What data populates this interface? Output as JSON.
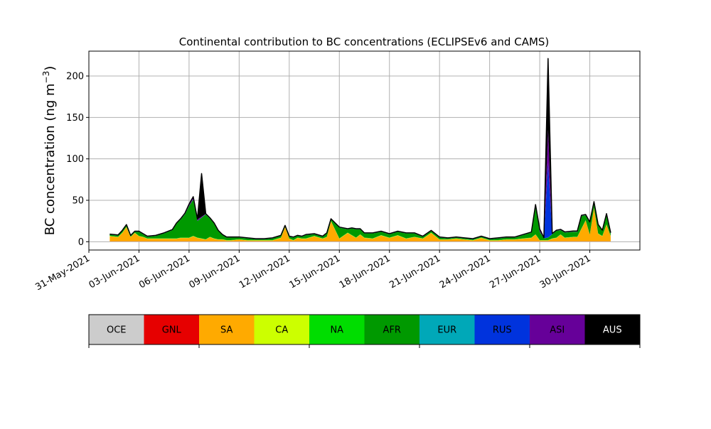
{
  "chart_data": {
    "type": "area",
    "title": "Continental contribution to BC concentrations (ECLIPSEv6 and CAMS)",
    "ylabel_text": "BC concentration (ng m",
    "ylabel_sup": "−3",
    "ylabel_close": ")",
    "xlabel": "",
    "xlim": [
      "2021-05-31",
      "2021-07-03"
    ],
    "ylim": [
      -10,
      230
    ],
    "grid": true,
    "y_ticks": [
      0,
      50,
      100,
      150,
      200
    ],
    "x_ticks": [
      {
        "date": "2021-05-31",
        "label": "31-May-2021"
      },
      {
        "date": "2021-06-03",
        "label": "03-Jun-2021"
      },
      {
        "date": "2021-06-06",
        "label": "06-Jun-2021"
      },
      {
        "date": "2021-06-09",
        "label": "09-Jun-2021"
      },
      {
        "date": "2021-06-12",
        "label": "12-Jun-2021"
      },
      {
        "date": "2021-06-15",
        "label": "15-Jun-2021"
      },
      {
        "date": "2021-06-18",
        "label": "18-Jun-2021"
      },
      {
        "date": "2021-06-21",
        "label": "21-Jun-2021"
      },
      {
        "date": "2021-06-24",
        "label": "24-Jun-2021"
      },
      {
        "date": "2021-06-27",
        "label": "27-Jun-2021"
      },
      {
        "date": "2021-06-30",
        "label": "30-Jun-2021"
      }
    ],
    "x": [
      "2021-06-01 06:00",
      "2021-06-01 18:00",
      "2021-06-02 00:00",
      "2021-06-02 06:00",
      "2021-06-02 12:00",
      "2021-06-02 18:00",
      "2021-06-03 00:00",
      "2021-06-03 06:00",
      "2021-06-03 12:00",
      "2021-06-04 00:00",
      "2021-06-04 12:00",
      "2021-06-05 00:00",
      "2021-06-05 06:00",
      "2021-06-05 12:00",
      "2021-06-05 18:00",
      "2021-06-06 00:00",
      "2021-06-06 06:00",
      "2021-06-06 12:00",
      "2021-06-06 18:00",
      "2021-06-07 00:00",
      "2021-06-07 06:00",
      "2021-06-07 12:00",
      "2021-06-07 18:00",
      "2021-06-08 00:00",
      "2021-06-08 06:00",
      "2021-06-08 12:00",
      "2021-06-09 00:00",
      "2021-06-09 12:00",
      "2021-06-10 00:00",
      "2021-06-10 12:00",
      "2021-06-11 00:00",
      "2021-06-11 12:00",
      "2021-06-11 18:00",
      "2021-06-12 00:00",
      "2021-06-12 06:00",
      "2021-06-12 12:00",
      "2021-06-12 18:00",
      "2021-06-13 00:00",
      "2021-06-13 12:00",
      "2021-06-14 00:00",
      "2021-06-14 06:00",
      "2021-06-14 12:00",
      "2021-06-15 00:00",
      "2021-06-15 12:00",
      "2021-06-15 18:00",
      "2021-06-16 00:00",
      "2021-06-16 06:00",
      "2021-06-16 12:00",
      "2021-06-17 00:00",
      "2021-06-17 12:00",
      "2021-06-18 00:00",
      "2021-06-18 12:00",
      "2021-06-19 00:00",
      "2021-06-19 12:00",
      "2021-06-20 00:00",
      "2021-06-20 12:00",
      "2021-06-21 00:00",
      "2021-06-21 12:00",
      "2021-06-22 00:00",
      "2021-06-22 12:00",
      "2021-06-23 00:00",
      "2021-06-23 12:00",
      "2021-06-24 00:00",
      "2021-06-24 12:00",
      "2021-06-25 00:00",
      "2021-06-25 12:00",
      "2021-06-26 00:00",
      "2021-06-26 12:00",
      "2021-06-26 18:00",
      "2021-06-27 00:00",
      "2021-06-27 06:00",
      "2021-06-27 12:00",
      "2021-06-27 18:00",
      "2021-06-28 00:00",
      "2021-06-28 06:00",
      "2021-06-28 12:00",
      "2021-06-29 00:00",
      "2021-06-29 06:00",
      "2021-06-29 12:00",
      "2021-06-29 18:00",
      "2021-06-30 00:00",
      "2021-06-30 06:00",
      "2021-06-30 12:00",
      "2021-06-30 18:00",
      "2021-07-01 00:00",
      "2021-07-01 06:00"
    ],
    "series": [
      {
        "name": "OCE",
        "color": "#cccccc",
        "values": [
          0.3,
          0.3,
          0.3,
          0.3,
          0.3,
          0.3,
          0.3,
          0.3,
          0.3,
          0.3,
          0.3,
          0.3,
          0.3,
          0.3,
          0.3,
          0.3,
          0.3,
          0.3,
          0.3,
          0.3,
          0.3,
          0.3,
          0.3,
          0.3,
          0.3,
          0.3,
          0.3,
          0.3,
          0.3,
          0.3,
          0.3,
          0.3,
          0.3,
          0.3,
          0.3,
          0.3,
          0.3,
          0.3,
          0.3,
          0.3,
          0.3,
          0.3,
          0.3,
          0.3,
          0.3,
          0.3,
          0.3,
          0.3,
          0.3,
          0.3,
          0.3,
          0.3,
          0.3,
          0.3,
          0.3,
          0.3,
          0.3,
          0.3,
          0.3,
          0.3,
          0.3,
          0.3,
          0.3,
          0.3,
          0.3,
          0.3,
          0.3,
          0.3,
          0.3,
          0.3,
          0.3,
          0.3,
          0.3,
          0.3,
          0.3,
          0.3,
          0.3,
          0.3,
          0.3,
          0.3,
          0.3,
          0.3,
          0.3,
          0.3,
          0.3,
          0.3
        ]
      },
      {
        "name": "GNL",
        "color": "#e60000",
        "values": [
          0.2,
          0.2,
          0.2,
          0.2,
          0.2,
          0.2,
          0.2,
          0.2,
          0.2,
          0.2,
          0.2,
          0.2,
          0.2,
          0.2,
          0.2,
          0.2,
          0.2,
          0.2,
          0.2,
          0.2,
          0.2,
          0.2,
          0.2,
          0.2,
          0.2,
          0.2,
          0.2,
          0.2,
          0.2,
          0.2,
          0.2,
          0.2,
          0.2,
          0.2,
          0.2,
          0.2,
          0.2,
          0.2,
          0.2,
          0.2,
          0.2,
          0.2,
          0.2,
          0.2,
          0.2,
          0.2,
          0.2,
          0.2,
          0.2,
          0.2,
          0.2,
          0.2,
          0.2,
          0.2,
          0.2,
          0.2,
          0.2,
          0.2,
          0.2,
          0.2,
          0.2,
          0.2,
          0.2,
          0.2,
          0.2,
          0.2,
          0.2,
          0.2,
          0.2,
          0.2,
          0.2,
          0.2,
          0.2,
          0.2,
          0.2,
          0.2,
          0.2,
          0.2,
          0.2,
          0.2,
          0.2,
          0.2,
          0.2,
          0.2,
          0.2,
          0.2
        ]
      },
      {
        "name": "SA",
        "color": "#ffaa00",
        "values": [
          6,
          5,
          10,
          17,
          5,
          10,
          6,
          5,
          3,
          3,
          3,
          3,
          3,
          4,
          4,
          4,
          6,
          4,
          3,
          2,
          5,
          3,
          2,
          2,
          1,
          1,
          2,
          1,
          1,
          1,
          1,
          4,
          17,
          3,
          1,
          4,
          3,
          3,
          6,
          3,
          5,
          24,
          3,
          10,
          7,
          4,
          8,
          4,
          3,
          7,
          4,
          7,
          3,
          5,
          3,
          10,
          2,
          2,
          3,
          2,
          1,
          4,
          1,
          1,
          2,
          2,
          3,
          4,
          8,
          1,
          1,
          1,
          3,
          4,
          8,
          4,
          5,
          5,
          15,
          25,
          8,
          40,
          9,
          6,
          20,
          6
        ]
      },
      {
        "name": "CA",
        "color": "#ccff00",
        "values": [
          0.3,
          0.3,
          0.3,
          0.3,
          0.3,
          0.3,
          0.3,
          0.3,
          0.3,
          0.3,
          0.3,
          0.3,
          0.3,
          0.3,
          0.3,
          0.3,
          0.3,
          0.3,
          0.3,
          0.3,
          0.3,
          0.3,
          0.3,
          0.3,
          0.3,
          0.3,
          0.3,
          0.3,
          0.3,
          0.3,
          0.3,
          0.3,
          0.3,
          0.3,
          0.3,
          0.3,
          0.3,
          0.3,
          0.3,
          0.3,
          0.3,
          0.3,
          0.3,
          0.3,
          0.3,
          0.3,
          0.3,
          0.3,
          0.3,
          0.3,
          0.3,
          0.3,
          0.3,
          0.3,
          0.3,
          0.3,
          0.3,
          0.3,
          0.3,
          0.3,
          0.3,
          0.3,
          0.3,
          0.3,
          0.3,
          0.3,
          0.3,
          0.3,
          0.3,
          0.3,
          0.3,
          0.3,
          0.3,
          0.3,
          0.3,
          0.3,
          0.3,
          0.3,
          0.3,
          0.3,
          0.3,
          0.3,
          0.3,
          0.3,
          0.3,
          0.3
        ]
      },
      {
        "name": "NA",
        "color": "#00dd00",
        "values": [
          0.2,
          0.2,
          0.2,
          0.2,
          0.2,
          0.2,
          0.2,
          0.2,
          0.2,
          0.2,
          0.2,
          0.2,
          0.2,
          0.2,
          0.2,
          0.2,
          0.2,
          0.2,
          0.2,
          0.2,
          0.2,
          0.2,
          0.2,
          0.2,
          0.2,
          0.2,
          0.2,
          0.2,
          0.2,
          0.2,
          0.2,
          0.2,
          0.2,
          0.2,
          0.2,
          0.2,
          0.2,
          0.2,
          0.2,
          0.2,
          0.2,
          0.2,
          0.2,
          0.2,
          0.2,
          0.2,
          0.2,
          0.2,
          0.2,
          0.2,
          0.2,
          0.2,
          0.2,
          0.2,
          0.2,
          0.2,
          0.2,
          0.2,
          0.2,
          0.2,
          0.2,
          0.2,
          0.2,
          0.2,
          0.2,
          0.2,
          0.2,
          0.2,
          0.2,
          0.2,
          0.2,
          0.2,
          0.2,
          0.2,
          0.2,
          0.2,
          0.2,
          0.2,
          0.2,
          0.2,
          0.2,
          0.2,
          0.2,
          0.2,
          0.2,
          0.2
        ]
      },
      {
        "name": "AFR",
        "color": "#009900",
        "values": [
          1.5,
          1.5,
          2,
          2,
          1,
          1,
          5,
          3,
          2,
          3,
          6,
          10,
          18,
          22,
          28,
          38,
          44,
          20,
          25,
          30,
          22,
          18,
          10,
          5,
          3,
          3,
          2,
          2,
          1,
          1,
          2,
          2,
          1,
          2,
          3,
          2,
          2,
          4,
          2,
          2,
          4,
          2,
          13,
          4,
          8,
          10,
          6,
          5,
          6,
          4,
          4,
          4,
          6,
          4,
          2,
          2,
          2,
          1,
          1,
          1,
          1,
          1,
          1,
          2,
          2,
          2,
          4,
          6,
          35,
          10,
          2,
          3,
          5,
          8,
          5,
          6,
          6,
          6,
          15,
          6,
          14,
          6,
          10,
          6,
          12,
          3
        ]
      },
      {
        "name": "EUR",
        "color": "#00a8b8",
        "values": [
          0.1,
          0.1,
          0.1,
          0.1,
          0.1,
          0.1,
          0.1,
          0.1,
          0.1,
          0.1,
          0.1,
          0.1,
          0.1,
          0.1,
          0.1,
          0.1,
          0.1,
          0.1,
          0.1,
          0.1,
          0.1,
          0.1,
          0.1,
          0.1,
          0.1,
          0.1,
          0.1,
          0.1,
          0.1,
          0.1,
          0.1,
          0.1,
          0.1,
          0.1,
          0.1,
          0.1,
          0.1,
          0.1,
          0.1,
          0.1,
          0.1,
          0.1,
          0.1,
          0.1,
          0.1,
          0.1,
          0.1,
          0.1,
          0.1,
          0.1,
          0.1,
          0.1,
          0.1,
          0.1,
          0.1,
          0.1,
          0.1,
          0.1,
          0.1,
          0.1,
          0.1,
          0.1,
          0.1,
          0.1,
          0.1,
          0.1,
          0.1,
          0.1,
          0.1,
          0.1,
          0.1,
          0.1,
          0.1,
          0.1,
          0.1,
          0.1,
          0.1,
          0.1,
          0.1,
          0.1,
          0.1,
          0.1,
          0.1,
          0.1,
          0.1,
          0.1
        ]
      },
      {
        "name": "RUS",
        "color": "#0033dd",
        "values": [
          0.1,
          0.1,
          0.1,
          0.1,
          0.1,
          0.1,
          0.1,
          0.1,
          0.1,
          0.1,
          0.1,
          0.1,
          0.1,
          0.1,
          0.1,
          0.1,
          0.1,
          0.1,
          0.1,
          0.1,
          0.1,
          0.1,
          0.1,
          0.1,
          0.1,
          0.1,
          0.1,
          0.1,
          0.1,
          0.1,
          0.1,
          0.1,
          0.1,
          0.1,
          0.1,
          0.1,
          0.1,
          0.1,
          0.1,
          0.1,
          0.1,
          0.1,
          0.1,
          0.1,
          0.1,
          0.1,
          0.1,
          0.1,
          0.1,
          0.1,
          0.1,
          0.1,
          0.1,
          0.1,
          0.1,
          0.1,
          0.1,
          0.1,
          0.1,
          0.1,
          0.1,
          0.1,
          0.1,
          0.1,
          0.1,
          0.1,
          0.1,
          0.1,
          0.1,
          0.1,
          0.1,
          90,
          0.1,
          0.1,
          0.1,
          0.1,
          0.1,
          0.1,
          0.1,
          0.1,
          0.1,
          0.1,
          0.1,
          0.1,
          0.1,
          0.1
        ]
      },
      {
        "name": "ASI",
        "color": "#660099",
        "values": [
          0.3,
          0.3,
          0.3,
          0.3,
          0.3,
          0.3,
          0.3,
          0.3,
          0.3,
          0.3,
          0.3,
          0.3,
          0.3,
          0.5,
          1,
          2,
          3,
          2,
          1,
          0.5,
          0.5,
          0.3,
          0.3,
          0.3,
          0.3,
          0.3,
          0.3,
          0.3,
          0.3,
          0.3,
          0.3,
          0.3,
          0.3,
          0.3,
          0.3,
          0.3,
          0.3,
          0.3,
          0.3,
          0.3,
          0.3,
          0.3,
          0.3,
          0.3,
          0.3,
          0.3,
          0.3,
          0.3,
          0.3,
          0.3,
          0.3,
          0.3,
          0.3,
          0.3,
          0.3,
          0.3,
          0.3,
          0.3,
          0.3,
          0.3,
          0.3,
          0.3,
          0.3,
          0.3,
          0.3,
          0.3,
          0.3,
          0.3,
          0.5,
          3,
          0.5,
          40,
          0.5,
          0.5,
          0.5,
          0.5,
          0.5,
          0.5,
          0.5,
          0.5,
          0.5,
          1,
          0.5,
          0.5,
          0.5,
          0.5
        ]
      },
      {
        "name": "AUS",
        "color": "#000000",
        "values": [
          0.2,
          0.2,
          0.2,
          0.2,
          0.2,
          0.2,
          0.2,
          0.2,
          0.2,
          0.2,
          0.2,
          0.2,
          0.2,
          0.2,
          0.2,
          0.2,
          0.2,
          0.2,
          52,
          0.2,
          0.2,
          0.2,
          0.2,
          0.2,
          0.2,
          0.2,
          0.2,
          0.2,
          0.2,
          0.2,
          0.2,
          0.2,
          0.2,
          0.2,
          0.2,
          0.2,
          0.2,
          0.2,
          0.2,
          0.2,
          0.2,
          0.2,
          0.2,
          0.2,
          0.2,
          0.2,
          0.2,
          0.2,
          0.2,
          0.2,
          0.2,
          0.2,
          0.2,
          0.2,
          0.2,
          0.2,
          0.2,
          0.2,
          0.2,
          0.2,
          0.2,
          0.2,
          0.2,
          0.2,
          0.2,
          0.2,
          0.2,
          0.2,
          0.2,
          0.2,
          0.2,
          86,
          0.2,
          0.2,
          0.2,
          0.2,
          0.2,
          0.2,
          0.2,
          0.2,
          0.2,
          0.2,
          0.2,
          0.2,
          0.2,
          0.2
        ]
      }
    ],
    "colorbar": {
      "labels": [
        "OCE",
        "GNL",
        "SA",
        "CA",
        "NA",
        "AFR",
        "EUR",
        "RUS",
        "ASI",
        "AUS"
      ],
      "colors": [
        "#cccccc",
        "#e60000",
        "#ffaa00",
        "#ccff00",
        "#00dd00",
        "#009900",
        "#00a8b8",
        "#0033dd",
        "#660099",
        "#000000"
      ],
      "text_colors": [
        "#000000",
        "#000000",
        "#000000",
        "#000000",
        "#000000",
        "#000000",
        "#000000",
        "#000000",
        "#000000",
        "#ffffff"
      ]
    }
  }
}
